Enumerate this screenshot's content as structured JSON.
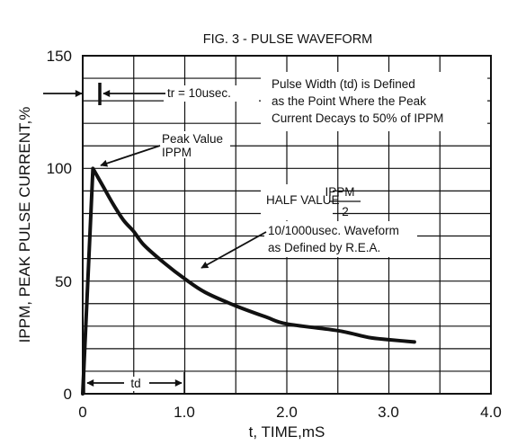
{
  "chart_data": {
    "type": "line",
    "title": "FIG. 3 - PULSE WAVEFORM",
    "xlabel": "t, TIME,mS",
    "ylabel": "IPPM, PEAK PULSE CURRENT,%",
    "xlim": [
      0,
      4.0
    ],
    "ylim": [
      0,
      150
    ],
    "x_ticks": [
      "0",
      "1.0",
      "2.0",
      "3.0",
      "4.0"
    ],
    "y_ticks": [
      "0",
      "50",
      "100",
      "150"
    ],
    "grid": true,
    "series": [
      {
        "x": [
          0,
          0.1,
          0.2,
          0.3,
          0.4,
          0.5,
          0.6,
          0.8,
          1.0,
          1.2,
          1.5,
          1.8,
          2.0,
          2.5,
          2.8,
          3.0,
          3.25
        ],
        "y": [
          0,
          100,
          92,
          84,
          77,
          72,
          66,
          58,
          51,
          45,
          39,
          34,
          31,
          28,
          25,
          24,
          23
        ]
      }
    ],
    "annotations": {
      "tr": "tr = 10usec.",
      "peak_line1": "Peak Value",
      "peak_line2": "IPPM",
      "width_line1": "Pulse Width (td) is Defined",
      "width_line2": "as the Point Where the Peak",
      "width_line3": "Current Decays to 50% of IPPM",
      "half_value": "HALF VALUE",
      "half_num": "IPPM",
      "half_den": "2",
      "wave_line1": "10/1000usec. Waveform",
      "wave_line2": "as Defined by R.E.A.",
      "td": "td"
    }
  }
}
